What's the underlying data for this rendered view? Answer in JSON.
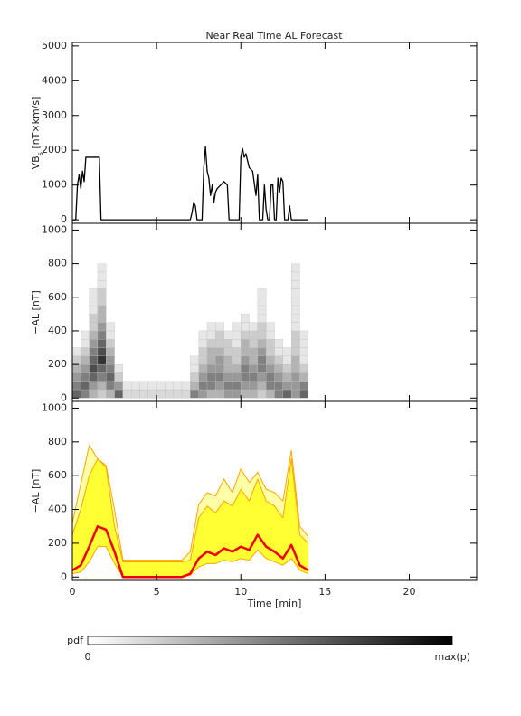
{
  "chart_data": [
    {
      "type": "line",
      "title": "Near Real Time AL Forecast",
      "ylabel": [
        "VB",
        "s",
        " [nT×km/s]"
      ],
      "xlim": [
        0,
        24
      ],
      "xticks": [
        0,
        5,
        10,
        15,
        20
      ],
      "ylim": [
        -100,
        5100
      ],
      "yticks": [
        0,
        1000,
        2000,
        3000,
        4000,
        5000
      ],
      "x": [
        0,
        0.2,
        0.3,
        0.4,
        0.5,
        0.6,
        0.7,
        0.8,
        1.6,
        1.7,
        7.0,
        7.1,
        7.2,
        7.3,
        7.4,
        7.7,
        7.8,
        7.9,
        8.0,
        8.1,
        8.2,
        8.3,
        8.4,
        8.5,
        8.6,
        8.8,
        9.0,
        9.2,
        9.3,
        9.9,
        10.0,
        10.1,
        10.2,
        10.3,
        10.5,
        10.7,
        10.9,
        11.0,
        11.1,
        11.3,
        11.4,
        11.5,
        11.6,
        11.7,
        11.8,
        11.9,
        12.0,
        12.1,
        12.2,
        12.3,
        12.4,
        12.5,
        12.6,
        12.8,
        12.9,
        13.0,
        14.0
      ],
      "series": [
        {
          "color": "#000000",
          "width": 1.3,
          "values": [
            0,
            0,
            1000,
            1300,
            900,
            1400,
            1100,
            1800,
            1800,
            0,
            0,
            200,
            500,
            400,
            0,
            0,
            1500,
            2100,
            1400,
            1200,
            700,
            1000,
            500,
            800,
            900,
            1000,
            1100,
            1000,
            0,
            0,
            1800,
            2050,
            1800,
            1900,
            1500,
            1400,
            700,
            1300,
            0,
            0,
            1000,
            300,
            0,
            0,
            1000,
            1000,
            0,
            0,
            1200,
            800,
            1200,
            1100,
            0,
            0,
            400,
            0,
            0
          ]
        }
      ]
    },
    {
      "type": "heatmap",
      "ylabel": [
        "−AL [nT]"
      ],
      "xlim": [
        0,
        24
      ],
      "xticks": [
        0,
        5,
        10,
        15,
        20
      ],
      "ylim": [
        -20,
        1040
      ],
      "yticks": [
        0,
        200,
        400,
        600,
        800,
        1000
      ],
      "xbins": [
        0,
        0.5,
        1,
        1.5,
        2,
        2.5,
        3,
        3.5,
        4,
        4.5,
        5,
        5.5,
        6,
        6.5,
        7,
        7.5,
        8,
        8.5,
        9,
        9.5,
        10,
        10.5,
        11,
        11.5,
        12,
        12.5,
        13,
        13.5,
        14
      ],
      "ybins": [
        0,
        50,
        100,
        150,
        200,
        250,
        300,
        350,
        400,
        450,
        500,
        550,
        600,
        650,
        700,
        750,
        800
      ],
      "z": [
        [
          0.6,
          0.5,
          0.4,
          0.3,
          0.2,
          0.1,
          0,
          0,
          0,
          0,
          0,
          0,
          0,
          0,
          0,
          0
        ],
        [
          0.5,
          0.6,
          0.5,
          0.4,
          0.3,
          0.2,
          0.1,
          0.1,
          0,
          0,
          0,
          0,
          0,
          0,
          0,
          0
        ],
        [
          0.3,
          0.4,
          0.6,
          0.7,
          0.6,
          0.5,
          0.4,
          0.3,
          0.2,
          0.2,
          0.1,
          0.1,
          0.1,
          0,
          0,
          0
        ],
        [
          0.2,
          0.3,
          0.5,
          0.6,
          0.8,
          0.7,
          0.6,
          0.5,
          0.4,
          0.3,
          0.3,
          0.2,
          0.2,
          0.1,
          0.1,
          0.1
        ],
        [
          0.3,
          0.5,
          0.6,
          0.5,
          0.4,
          0.3,
          0.2,
          0.1,
          0.1,
          0,
          0,
          0,
          0,
          0,
          0,
          0
        ],
        [
          0.6,
          0.4,
          0.2,
          0.1,
          0,
          0,
          0,
          0,
          0,
          0,
          0,
          0,
          0,
          0,
          0,
          0
        ],
        [
          0.15,
          0.1,
          0,
          0,
          0,
          0,
          0,
          0,
          0,
          0,
          0,
          0,
          0,
          0,
          0,
          0
        ],
        [
          0.15,
          0.1,
          0,
          0,
          0,
          0,
          0,
          0,
          0,
          0,
          0,
          0,
          0,
          0,
          0,
          0
        ],
        [
          0.15,
          0.1,
          0,
          0,
          0,
          0,
          0,
          0,
          0,
          0,
          0,
          0,
          0,
          0,
          0,
          0
        ],
        [
          0.15,
          0.1,
          0,
          0,
          0,
          0,
          0,
          0,
          0,
          0,
          0,
          0,
          0,
          0,
          0,
          0
        ],
        [
          0.15,
          0.1,
          0,
          0,
          0,
          0,
          0,
          0,
          0,
          0,
          0,
          0,
          0,
          0,
          0,
          0
        ],
        [
          0.15,
          0.1,
          0,
          0,
          0,
          0,
          0,
          0,
          0,
          0,
          0,
          0,
          0,
          0,
          0,
          0
        ],
        [
          0.15,
          0.1,
          0,
          0,
          0,
          0,
          0,
          0,
          0,
          0,
          0,
          0,
          0,
          0,
          0,
          0
        ],
        [
          0.15,
          0.1,
          0,
          0,
          0,
          0,
          0,
          0,
          0,
          0,
          0,
          0,
          0,
          0,
          0,
          0
        ],
        [
          0.5,
          0.3,
          0.2,
          0.1,
          0.1,
          0,
          0,
          0,
          0,
          0,
          0,
          0,
          0,
          0,
          0,
          0
        ],
        [
          0.4,
          0.5,
          0.4,
          0.3,
          0.2,
          0.2,
          0.1,
          0.1,
          0,
          0,
          0,
          0,
          0,
          0,
          0,
          0
        ],
        [
          0.3,
          0.5,
          0.5,
          0.4,
          0.3,
          0.3,
          0.2,
          0.1,
          0.1,
          0,
          0,
          0,
          0,
          0,
          0,
          0
        ],
        [
          0.3,
          0.4,
          0.5,
          0.4,
          0.4,
          0.3,
          0.2,
          0.2,
          0.1,
          0,
          0,
          0,
          0,
          0,
          0,
          0
        ],
        [
          0.4,
          0.5,
          0.4,
          0.3,
          0.3,
          0.2,
          0.2,
          0.1,
          0,
          0,
          0,
          0,
          0,
          0,
          0,
          0
        ],
        [
          0.4,
          0.5,
          0.4,
          0.3,
          0.2,
          0.2,
          0.1,
          0.1,
          0.1,
          0,
          0,
          0,
          0,
          0,
          0,
          0
        ],
        [
          0.3,
          0.4,
          0.5,
          0.5,
          0.4,
          0.3,
          0.3,
          0.2,
          0.1,
          0.1,
          0,
          0,
          0,
          0,
          0,
          0
        ],
        [
          0.3,
          0.4,
          0.5,
          0.4,
          0.3,
          0.3,
          0.2,
          0.2,
          0.1,
          0,
          0,
          0,
          0,
          0,
          0,
          0
        ],
        [
          0.2,
          0.3,
          0.4,
          0.5,
          0.5,
          0.4,
          0.3,
          0.2,
          0.2,
          0.1,
          0.1,
          0.1,
          0.1,
          0,
          0,
          0
        ],
        [
          0.3,
          0.5,
          0.5,
          0.4,
          0.3,
          0.2,
          0.2,
          0.1,
          0.1,
          0,
          0,
          0,
          0,
          0,
          0,
          0
        ],
        [
          0.5,
          0.5,
          0.4,
          0.3,
          0.2,
          0.1,
          0.1,
          0,
          0,
          0,
          0,
          0,
          0,
          0,
          0,
          0
        ],
        [
          0.6,
          0.4,
          0.3,
          0.2,
          0.1,
          0.1,
          0,
          0,
          0,
          0,
          0,
          0,
          0,
          0,
          0,
          0
        ],
        [
          0.4,
          0.4,
          0.4,
          0.3,
          0.3,
          0.2,
          0.2,
          0.2,
          0.1,
          0.1,
          0.1,
          0.1,
          0.1,
          0.1,
          0.1,
          0.1
        ],
        [
          0.6,
          0.5,
          0.3,
          0.2,
          0.1,
          0.1,
          0.1,
          0.1,
          0,
          0,
          0,
          0,
          0,
          0,
          0,
          0
        ]
      ]
    },
    {
      "type": "line",
      "ylabel": [
        "−AL [nT]"
      ],
      "xlabel": "Time [min]",
      "xlim": [
        0,
        24
      ],
      "xticks": [
        0,
        5,
        10,
        15,
        20
      ],
      "ylim": [
        -20,
        1040
      ],
      "yticks": [
        0,
        200,
        400,
        600,
        800,
        1000
      ],
      "x": [
        0,
        0.5,
        1,
        1.5,
        2,
        2.5,
        3,
        3.5,
        4,
        4.5,
        5,
        5.5,
        6,
        6.5,
        7,
        7.5,
        8,
        8.5,
        9,
        9.5,
        10,
        10.5,
        11,
        11.5,
        12,
        12.5,
        13,
        13.5,
        14
      ],
      "series": [
        {
          "color": "#ffa500",
          "fill": "#ffffa8",
          "width": 1,
          "values": [
            320,
            550,
            780,
            700,
            660,
            400,
            100,
            100,
            100,
            100,
            100,
            100,
            100,
            100,
            150,
            430,
            500,
            480,
            580,
            500,
            640,
            560,
            620,
            520,
            500,
            450,
            750,
            300,
            240
          ]
        },
        {
          "color": "#ffa500",
          "fill": "#ffff33",
          "width": 1,
          "values": [
            250,
            400,
            600,
            700,
            650,
            300,
            90,
            90,
            90,
            90,
            90,
            90,
            90,
            90,
            100,
            350,
            420,
            380,
            450,
            420,
            520,
            450,
            580,
            450,
            420,
            350,
            700,
            250,
            200
          ]
        },
        {
          "color": "#ffa500",
          "fill": "#ffffff",
          "width": 1,
          "values": [
            20,
            30,
            90,
            180,
            180,
            80,
            0,
            0,
            0,
            0,
            0,
            0,
            0,
            0,
            10,
            60,
            80,
            80,
            100,
            90,
            110,
            100,
            160,
            110,
            90,
            70,
            110,
            40,
            20
          ]
        },
        {
          "color": "#ee0000",
          "width": 2.5,
          "values": [
            40,
            70,
            180,
            300,
            280,
            150,
            0,
            0,
            0,
            0,
            0,
            0,
            0,
            0,
            20,
            110,
            150,
            130,
            170,
            150,
            180,
            160,
            250,
            180,
            150,
            110,
            190,
            70,
            40
          ]
        }
      ]
    }
  ],
  "colorbar": {
    "label": "pdf",
    "min_label": "0",
    "max_label": "max(p)",
    "colors": [
      "#ffffff",
      "#000000"
    ]
  }
}
